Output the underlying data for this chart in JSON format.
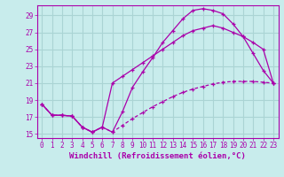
{
  "xlabel": "Windchill (Refroidissement éolien,°C)",
  "background_color": "#c8ecec",
  "grid_color": "#aad4d4",
  "line_color": "#aa00aa",
  "xlim": [
    -0.5,
    23.5
  ],
  "ylim": [
    14.5,
    30.2
  ],
  "yticks": [
    15,
    17,
    19,
    21,
    23,
    25,
    27,
    29
  ],
  "xticks": [
    0,
    1,
    2,
    3,
    4,
    5,
    6,
    7,
    8,
    9,
    10,
    11,
    12,
    13,
    14,
    15,
    16,
    17,
    18,
    19,
    20,
    21,
    22,
    23
  ],
  "line1_x": [
    0,
    1,
    2,
    3,
    4,
    5,
    6,
    7,
    8,
    9,
    10,
    11,
    12,
    13,
    14,
    15,
    16,
    17,
    18,
    19,
    20,
    21,
    22,
    23
  ],
  "line1_y": [
    18.5,
    17.2,
    17.2,
    17.1,
    15.8,
    15.2,
    15.8,
    15.2,
    17.6,
    20.5,
    22.3,
    24.0,
    25.8,
    27.2,
    28.6,
    29.6,
    29.8,
    29.6,
    29.2,
    28.0,
    26.5,
    24.5,
    22.5,
    21.0
  ],
  "line2_x": [
    0,
    1,
    2,
    3,
    4,
    5,
    6,
    7,
    8,
    9,
    10,
    11,
    12,
    13,
    14,
    15,
    16,
    17,
    18,
    19,
    20,
    21,
    22,
    23
  ],
  "line2_y": [
    18.5,
    17.2,
    17.2,
    17.1,
    15.8,
    15.2,
    15.8,
    21.0,
    21.8,
    22.6,
    23.4,
    24.2,
    25.0,
    25.8,
    26.6,
    27.2,
    27.5,
    27.8,
    27.5,
    27.0,
    26.5,
    25.8,
    25.0,
    21.0
  ],
  "line3_x": [
    0,
    1,
    2,
    3,
    4,
    5,
    6,
    7,
    8,
    9,
    10,
    11,
    12,
    13,
    14,
    15,
    16,
    17,
    18,
    19,
    20,
    21,
    22,
    23
  ],
  "line3_y": [
    18.5,
    17.2,
    17.2,
    17.1,
    15.8,
    15.2,
    15.8,
    15.2,
    16.0,
    16.8,
    17.5,
    18.2,
    18.8,
    19.4,
    19.9,
    20.3,
    20.6,
    20.9,
    21.1,
    21.2,
    21.2,
    21.2,
    21.1,
    21.0
  ],
  "tick_fontsize": 5.5,
  "label_fontsize": 6.5
}
